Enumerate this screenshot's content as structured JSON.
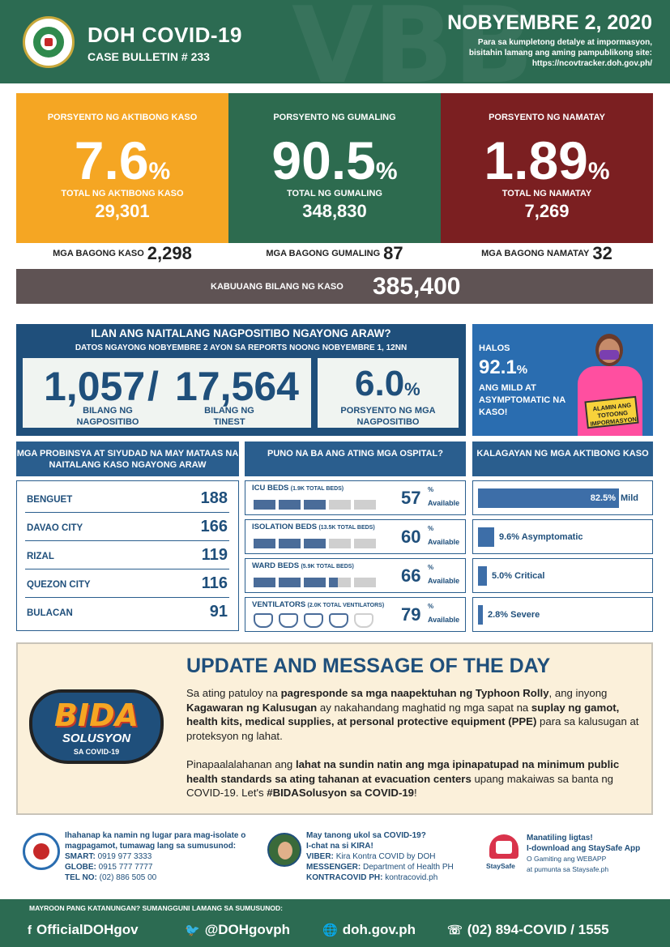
{
  "header": {
    "title": "DOH COVID-19",
    "subtitle": "CASE BULLETIN # 233",
    "date": "NOBYEMBRE 2, 2020",
    "note_line1": "Para sa kumpletong detalye at impormasyon,",
    "note_line2": "bisitahin lamang ang aming pampublikong site:",
    "note_line3": "https://ncovtracker.doh.gov.ph/",
    "watermark": "VBB"
  },
  "stats": {
    "active": {
      "label": "PORSYENTO NG AKTIBONG KASO",
      "pct": "7.6",
      "total_label": "TOTAL NG AKTIBONG KASO",
      "total": "29,301",
      "color": "#f5a623"
    },
    "recovered": {
      "label": "PORSYENTO NG GUMALING",
      "pct": "90.5",
      "total_label": "TOTAL NG GUMALING",
      "total": "348,830",
      "color": "#2d6b4f"
    },
    "deaths": {
      "label": "PORSYENTO NG NAMATAY",
      "pct": "1.89",
      "total_label": "TOTAL NG NAMATAY",
      "total": "7,269",
      "color": "#7b1f21"
    },
    "percent_sign": "%"
  },
  "new": {
    "cases_label": "MGA BAGONG KASO",
    "cases": "2,298",
    "recovered_label": "MGA BAGONG GUMALING",
    "recovered": "87",
    "deaths_label": "MGA BAGONG NAMATAY",
    "deaths": "32"
  },
  "total": {
    "label": "KABUUANG BILANG NG KASO",
    "value": "385,400"
  },
  "positivity": {
    "title": "ILAN ANG NAITALANG NAGPOSITIBO NGAYONG ARAW?",
    "subtitle": "DATOS NGAYONG NOBYEMBRE 2 AYON SA REPORTS NOONG NOBYEMBRE 1, 12NN",
    "positive": "1,057",
    "slash": "/",
    "tested": "17,564",
    "positive_label_1": "BILANG NG",
    "positive_label_2": "NAGPOSITIBO",
    "tested_label_1": "BILANG NG",
    "tested_label_2": "TINEST",
    "rate": "6.0",
    "rate_label_1": "PORSYENTO NG MGA",
    "rate_label_2": "NAGPOSITIBO"
  },
  "promo": {
    "line1": "HALOS",
    "pct": "92.1",
    "line3": "ANG MILD AT ASYMPTOMATIC NA KASO!",
    "sign": "ALAMIN ANG TOTOONG IMPORMASYON"
  },
  "provinces": {
    "header": "MGA PROBINSYA AT SIYUDAD NA MAY MATAAS NA NAITALANG KASO NGAYONG ARAW",
    "items": [
      {
        "name": "BENGUET",
        "value": "188"
      },
      {
        "name": "DAVAO CITY",
        "value": "166"
      },
      {
        "name": "RIZAL",
        "value": "119"
      },
      {
        "name": "QUEZON CITY",
        "value": "116"
      },
      {
        "name": "BULACAN",
        "value": "91"
      }
    ]
  },
  "hospitals": {
    "header": "PUNO NA BA ANG ATING MGA OSPITAL?",
    "available_label": "Available",
    "items": [
      {
        "name": "ICU BEDS",
        "detail": "(1.9K TOTAL BEDS)",
        "value": "57",
        "fraction": 0.57
      },
      {
        "name": "ISOLATION BEDS",
        "detail": "(13.5K TOTAL BEDS)",
        "value": "60",
        "fraction": 0.6
      },
      {
        "name": "WARD BEDS",
        "detail": "(5.9K TOTAL BEDS)",
        "value": "66",
        "fraction": 0.66
      },
      {
        "name": "VENTILATORS",
        "detail": "(2.0K TOTAL VENTILATORS)",
        "value": "79",
        "fraction": 0.79
      }
    ]
  },
  "status": {
    "header": "KALAGAYAN NG MGA AKTIBONG KASO",
    "items": [
      {
        "label": "82.5%",
        "suffix": "Mild",
        "fraction": 0.825
      },
      {
        "label": "9.6% Asymptomatic",
        "suffix": "",
        "fraction": 0.096
      },
      {
        "label": "5.0% Critical",
        "suffix": "",
        "fraction": 0.05
      },
      {
        "label": "2.8% Severe",
        "suffix": "",
        "fraction": 0.028
      }
    ]
  },
  "message": {
    "title": "UPDATE AND MESSAGE OF THE DAY",
    "logo_word": "BIDA",
    "logo_sub": "SOLUSYON",
    "logo_sub2": "SA COVID-19",
    "p1": [
      {
        "t": "Sa ating patuloy na ",
        "b": false
      },
      {
        "t": "pagresponde sa mga naapektuhan ng Typhoon Rolly",
        "b": true
      },
      {
        "t": ", ang inyong ",
        "b": false
      },
      {
        "t": "Kagawaran ng Kalusugan",
        "b": true
      },
      {
        "t": " ay nakahandang maghatid ng mga sapat na ",
        "b": false
      },
      {
        "t": "suplay ng gamot, health kits, medical supplies, at personal protective equipment (PPE)",
        "b": true
      },
      {
        "t": " para sa kalusugan at proteksyon ng lahat.",
        "b": false
      }
    ],
    "p2": [
      {
        "t": "Pinapaalalahanan ang ",
        "b": false
      },
      {
        "t": "lahat na sundin natin ang mga ipinapatupad na minimum public health standards sa ating tahanan at evacuation centers",
        "b": true
      },
      {
        "t": " upang makaiwas sa banta ng COVID-19. Let's ",
        "b": false
      },
      {
        "t": "#BIDASolusyon sa COVID-19",
        "b": true
      },
      {
        "t": "!",
        "b": false
      }
    ]
  },
  "contacts": {
    "c1": {
      "line1": "Ihahanap ka namin ng lugar para mag-isolate o magpagamot, tumawag lang sa sumusunod:",
      "smart_l": "SMART:",
      "smart": "0919 977 3333",
      "globe_l": "GLOBE:",
      "globe": "0915 777 7777",
      "tel_l": "TEL NO:",
      "tel": "(02) 886 505 00"
    },
    "c2": {
      "line1": "May tanong ukol sa COVID-19?",
      "line2": "I-chat na si KIRA!",
      "viber_l": "VIBER:",
      "viber": "Kira Kontra COVID by DOH",
      "msg_l": "MESSENGER:",
      "msg": "Department of Health PH",
      "kon_l": "KONTRACOVID PH:",
      "kon": "kontracovid.ph"
    },
    "c3": {
      "line1": "Manatiling ligtas!",
      "line2": "I-download ang StaySafe App",
      "line3": "O Gamiting ang WEBAPP",
      "line4": "at pumunta sa Staysafe.ph",
      "logo_label": "StaySafe"
    }
  },
  "footer": {
    "label": "MAYROON PANG KATANUNGAN? SUMANGGUNI LAMANG SA SUMUSUNOD:",
    "facebook": "OfficialDOHgov",
    "twitter": "@DOHgovph",
    "web": "doh.gov.ph",
    "phone": "(02) 894-COVID  /  1555"
  }
}
